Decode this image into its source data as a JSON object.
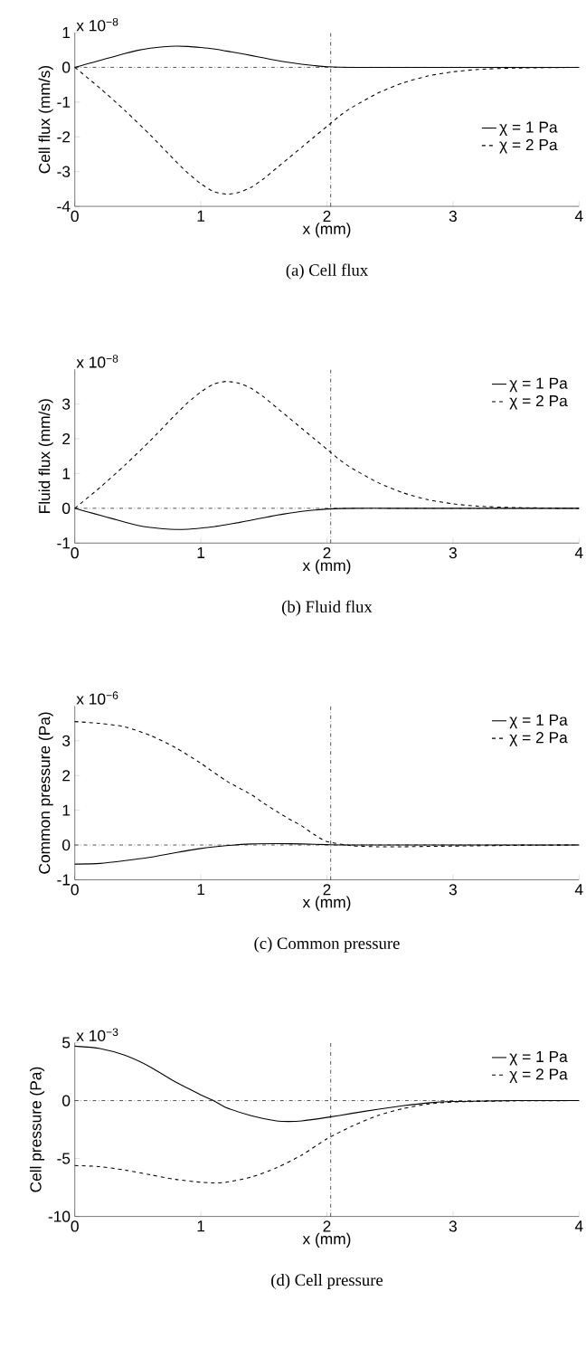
{
  "chart_data": [
    {
      "type": "line",
      "title": "(a) Cell flux",
      "xlabel": "x (mm)",
      "ylabel": "Cell flux (mm/s)",
      "annotations": [
        "x 10$^{−8}$"
      ],
      "xlim": [
        0,
        4
      ],
      "ylim": [
        -4,
        1
      ],
      "xticks": [
        0,
        1,
        2,
        3,
        4
      ],
      "yticks": [
        -4,
        -3,
        -2,
        -1,
        0,
        1
      ],
      "legend": "right",
      "ref_lines": [
        {
          "axis": "y",
          "value": 0,
          "line_style": "dashdot",
          "color": "#000000"
        },
        {
          "axis": "x",
          "value": 2.03,
          "line_style": "dashdot",
          "color": "#000000"
        }
      ],
      "series": [
        {
          "name": "χ = 1 Pa",
          "color": "#000000",
          "line_style": "solid",
          "x": [
            0,
            0.1,
            0.2,
            0.3,
            0.4,
            0.5,
            0.6,
            0.7,
            0.8,
            0.9,
            1.0,
            1.1,
            1.2,
            1.3,
            1.4,
            1.5,
            1.6,
            1.7,
            1.8,
            1.9,
            2.0,
            2.2,
            2.5,
            3,
            4
          ],
          "values": [
            0,
            0.1,
            0.2,
            0.3,
            0.4,
            0.49,
            0.55,
            0.59,
            0.61,
            0.6,
            0.57,
            0.53,
            0.47,
            0.41,
            0.34,
            0.27,
            0.2,
            0.14,
            0.09,
            0.05,
            0.02,
            0,
            0,
            0,
            0
          ]
        },
        {
          "name": "χ = 2 Pa",
          "color": "#000000",
          "line_style": "dashed",
          "x": [
            0,
            0.2,
            0.4,
            0.6,
            0.8,
            0.9,
            1.0,
            1.1,
            1.2,
            1.3,
            1.4,
            1.5,
            1.6,
            1.7,
            1.8,
            1.9,
            2.0,
            2.1,
            2.2,
            2.4,
            2.6,
            2.8,
            3.0,
            3.2,
            3.5,
            4
          ],
          "values": [
            0,
            -0.6,
            -1.25,
            -1.95,
            -2.7,
            -3.05,
            -3.35,
            -3.57,
            -3.65,
            -3.6,
            -3.45,
            -3.2,
            -2.9,
            -2.6,
            -2.3,
            -2.0,
            -1.7,
            -1.4,
            -1.15,
            -0.75,
            -0.45,
            -0.25,
            -0.13,
            -0.06,
            -0.02,
            0
          ]
        }
      ]
    },
    {
      "type": "line",
      "title": "(b) Fluid flux",
      "xlabel": "x (mm)",
      "ylabel": "Fluid flux (mm/s)",
      "annotations": [
        "x 10$^{−8}$"
      ],
      "xlim": [
        0,
        4
      ],
      "ylim": [
        -1,
        4
      ],
      "xticks": [
        0,
        1,
        2,
        3,
        4
      ],
      "yticks": [
        -1,
        0,
        1,
        2,
        3
      ],
      "legend": "top right",
      "ref_lines": [
        {
          "axis": "y",
          "value": 0,
          "line_style": "dashdot",
          "color": "#000000"
        },
        {
          "axis": "x",
          "value": 2.03,
          "line_style": "dashdot",
          "color": "#000000"
        }
      ],
      "series": [
        {
          "name": "χ = 1 Pa",
          "color": "#000000",
          "line_style": "solid",
          "x": [
            0,
            0.1,
            0.2,
            0.3,
            0.4,
            0.5,
            0.6,
            0.7,
            0.8,
            0.9,
            1.0,
            1.1,
            1.2,
            1.3,
            1.4,
            1.5,
            1.6,
            1.7,
            1.8,
            1.9,
            2.0,
            2.2,
            2.5,
            3,
            4
          ],
          "values": [
            0,
            -0.1,
            -0.2,
            -0.3,
            -0.4,
            -0.49,
            -0.55,
            -0.59,
            -0.61,
            -0.6,
            -0.57,
            -0.53,
            -0.47,
            -0.41,
            -0.34,
            -0.27,
            -0.2,
            -0.14,
            -0.09,
            -0.05,
            -0.02,
            0,
            0,
            0,
            0
          ]
        },
        {
          "name": "χ = 2 Pa",
          "color": "#000000",
          "line_style": "dashed",
          "x": [
            0,
            0.2,
            0.4,
            0.6,
            0.8,
            0.9,
            1.0,
            1.1,
            1.2,
            1.3,
            1.4,
            1.5,
            1.6,
            1.7,
            1.8,
            1.9,
            2.0,
            2.1,
            2.2,
            2.4,
            2.6,
            2.8,
            3.0,
            3.2,
            3.5,
            4
          ],
          "values": [
            0,
            0.6,
            1.25,
            1.95,
            2.7,
            3.05,
            3.35,
            3.57,
            3.65,
            3.6,
            3.45,
            3.2,
            2.9,
            2.6,
            2.3,
            2.0,
            1.7,
            1.4,
            1.15,
            0.75,
            0.45,
            0.25,
            0.13,
            0.06,
            0.02,
            0
          ]
        }
      ]
    },
    {
      "type": "line",
      "title": "(c) Common pressure",
      "xlabel": "x (mm)",
      "ylabel": "Common pressure (Pa)",
      "annotations": [
        "x 10$^{−6}$"
      ],
      "xlim": [
        0,
        4
      ],
      "ylim": [
        -1,
        4
      ],
      "xticks": [
        0,
        1,
        2,
        3,
        4
      ],
      "yticks": [
        -1,
        0,
        1,
        2,
        3
      ],
      "legend": "top right",
      "ref_lines": [
        {
          "axis": "y",
          "value": 0,
          "line_style": "dashdot",
          "color": "#000000"
        },
        {
          "axis": "x",
          "value": 2.03,
          "line_style": "dashdot",
          "color": "#000000"
        }
      ],
      "series": [
        {
          "name": "χ = 1 Pa",
          "color": "#000000",
          "line_style": "solid",
          "x": [
            0,
            0.2,
            0.4,
            0.6,
            0.8,
            1.0,
            1.2,
            1.4,
            1.6,
            1.8,
            2.0,
            2.2,
            3,
            4
          ],
          "values": [
            -0.55,
            -0.53,
            -0.45,
            -0.35,
            -0.22,
            -0.1,
            -0.02,
            0.03,
            0.04,
            0.03,
            0.01,
            0,
            0,
            0
          ]
        },
        {
          "name": "χ = 2 Pa",
          "color": "#000000",
          "line_style": "dashed",
          "x": [
            0,
            0.2,
            0.4,
            0.6,
            0.8,
            1.0,
            1.2,
            1.4,
            1.5,
            1.6,
            1.7,
            1.8,
            1.9,
            2.0,
            2.2,
            2.4,
            2.6,
            3.0,
            3.5,
            4
          ],
          "values": [
            3.55,
            3.5,
            3.4,
            3.15,
            2.8,
            2.35,
            1.85,
            1.45,
            1.2,
            0.97,
            0.75,
            0.55,
            0.3,
            0.1,
            -0.02,
            -0.05,
            -0.05,
            -0.03,
            -0.01,
            0
          ]
        }
      ]
    },
    {
      "type": "line",
      "title": "(d) Cell pressure",
      "xlabel": "x (mm)",
      "ylabel": "Cell pressure (Pa)",
      "annotations": [
        "x 10$^{−3}$"
      ],
      "xlim": [
        0,
        4
      ],
      "ylim": [
        -10,
        5
      ],
      "xticks": [
        0,
        1,
        2,
        3,
        4
      ],
      "yticks": [
        -10,
        -5,
        0,
        5
      ],
      "legend": "top right",
      "ref_lines": [
        {
          "axis": "y",
          "value": 0,
          "line_style": "dashdot",
          "color": "#000000"
        },
        {
          "axis": "x",
          "value": 2.03,
          "line_style": "dashdot",
          "color": "#000000"
        }
      ],
      "series": [
        {
          "name": "χ = 1 Pa",
          "color": "#000000",
          "line_style": "solid",
          "x": [
            0,
            0.2,
            0.4,
            0.6,
            0.8,
            1.0,
            1.1,
            1.2,
            1.4,
            1.6,
            1.7,
            1.8,
            2.0,
            2.2,
            2.4,
            2.6,
            2.8,
            3.0,
            3.5,
            4
          ],
          "values": [
            4.7,
            4.5,
            3.9,
            2.9,
            1.6,
            0.5,
            0,
            -0.6,
            -1.3,
            -1.75,
            -1.8,
            -1.75,
            -1.45,
            -1.1,
            -0.75,
            -0.45,
            -0.2,
            -0.08,
            0,
            0
          ]
        },
        {
          "name": "χ = 2 Pa",
          "color": "#000000",
          "line_style": "dashed",
          "x": [
            0,
            0.2,
            0.4,
            0.6,
            0.8,
            1.0,
            1.1,
            1.2,
            1.4,
            1.6,
            1.8,
            2.0,
            2.2,
            2.4,
            2.6,
            2.8,
            3.0,
            3.5,
            4
          ],
          "values": [
            -5.6,
            -5.7,
            -6.0,
            -6.4,
            -6.8,
            -7.05,
            -7.1,
            -7.05,
            -6.6,
            -5.8,
            -4.7,
            -3.3,
            -2.2,
            -1.3,
            -0.7,
            -0.3,
            -0.12,
            -0.02,
            0
          ]
        }
      ]
    }
  ]
}
